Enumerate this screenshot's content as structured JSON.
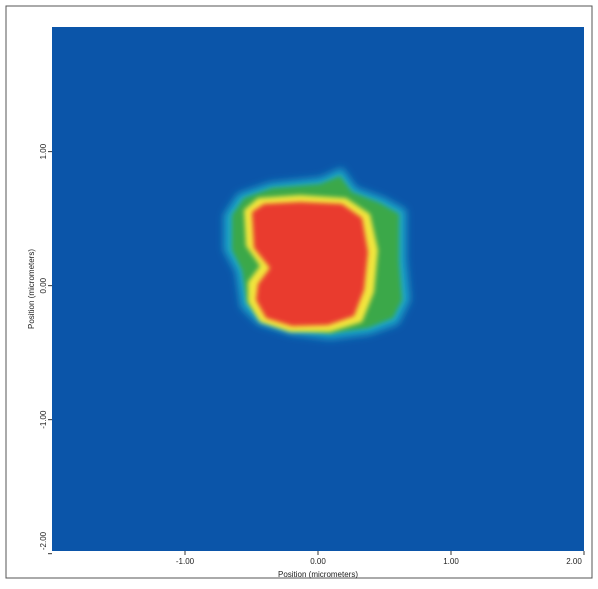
{
  "chart_data": {
    "type": "heatmap",
    "x_label": "Position (micrometers)",
    "y_label": "Position (micrometers)",
    "xlim": [
      -2,
      2
    ],
    "ylim": [
      -1.98,
      1.93
    ],
    "xticks": [
      {
        "value": -1,
        "label": "-1.00"
      },
      {
        "value": 0,
        "label": "0.00"
      },
      {
        "value": 1,
        "label": "1.00"
      },
      {
        "value": 2,
        "label": "2.00"
      }
    ],
    "yticks": [
      {
        "value": -2,
        "label": "-2.00"
      },
      {
        "value": -1,
        "label": "-1.00"
      },
      {
        "value": 0,
        "label": "0.00"
      },
      {
        "value": 1,
        "label": "1.00"
      }
    ]
  }
}
